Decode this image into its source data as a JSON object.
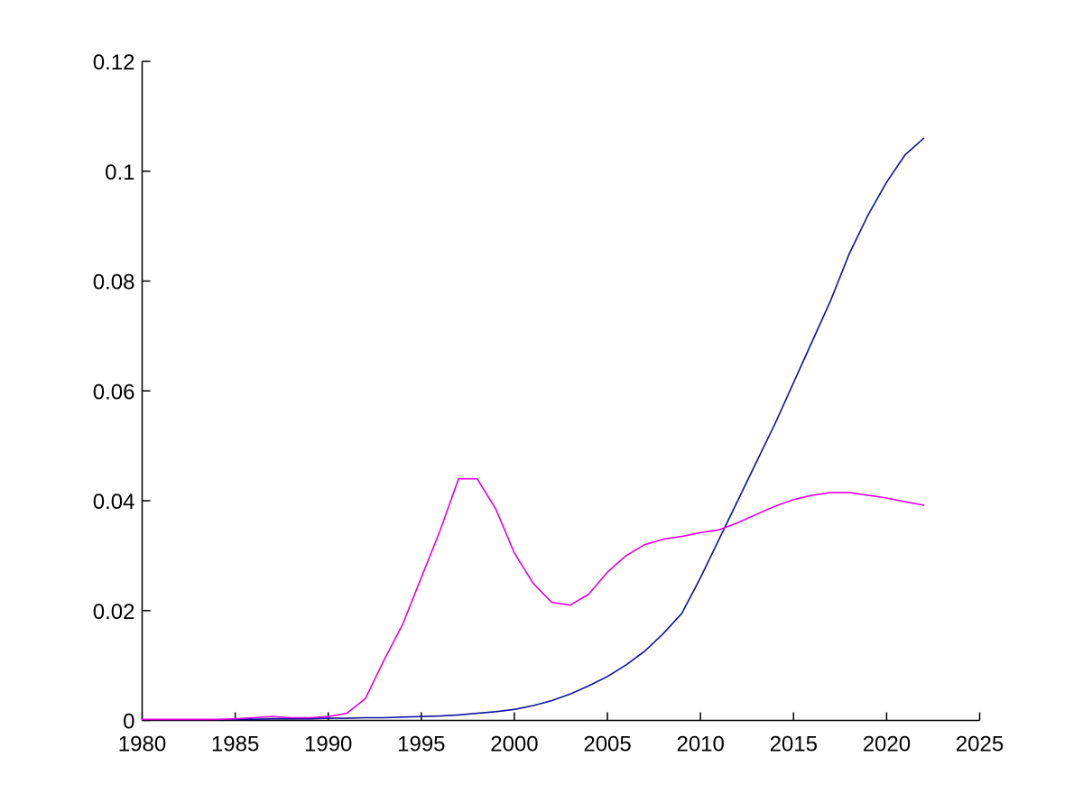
{
  "figure": {
    "background": "#ffffff"
  },
  "chart_data": {
    "type": "line",
    "x": [
      1980,
      1981,
      1982,
      1983,
      1984,
      1985,
      1986,
      1987,
      1988,
      1989,
      1990,
      1991,
      1992,
      1993,
      1994,
      1995,
      1996,
      1997,
      1998,
      1999,
      2000,
      2001,
      2002,
      2003,
      2004,
      2005,
      2006,
      2007,
      2008,
      2009,
      2010,
      2011,
      2012,
      2013,
      2014,
      2015,
      2016,
      2017,
      2018,
      2019,
      2020,
      2021,
      2022
    ],
    "series": [
      {
        "name": "blue-sigmoid-series",
        "color": "#10109b",
        "values": [
          0.0002,
          0.0002,
          0.0002,
          0.0002,
          0.0002,
          0.0002,
          0.0002,
          0.0003,
          0.0003,
          0.0003,
          0.0004,
          0.0004,
          0.0005,
          0.0005,
          0.0006,
          0.0007,
          0.0008,
          0.001,
          0.0013,
          0.0016,
          0.002,
          0.0027,
          0.0036,
          0.0048,
          0.0063,
          0.008,
          0.0101,
          0.0126,
          0.0158,
          0.0195,
          0.026,
          0.033,
          0.04,
          0.047,
          0.054,
          0.0615,
          0.069,
          0.0765,
          0.085,
          0.092,
          0.098,
          0.103,
          0.106
        ]
      },
      {
        "name": "magenta-double-peak-series",
        "color": "#e000e0",
        "values": [
          0.0002,
          0.0002,
          0.0002,
          0.0002,
          0.0002,
          0.0003,
          0.0005,
          0.0007,
          0.0005,
          0.0005,
          0.0007,
          0.0013,
          0.004,
          0.011,
          0.0175,
          0.026,
          0.0345,
          0.044,
          0.044,
          0.0385,
          0.0305,
          0.025,
          0.0215,
          0.021,
          0.023,
          0.027,
          0.03,
          0.032,
          0.033,
          0.0335,
          0.0342,
          0.0347,
          0.036,
          0.0375,
          0.039,
          0.0402,
          0.041,
          0.0415,
          0.0415,
          0.041,
          0.0405,
          0.0398,
          0.0392
        ]
      }
    ],
    "xlim": [
      1980,
      2025
    ],
    "ylim": [
      0,
      0.12
    ],
    "x_ticks": [
      1980,
      1985,
      1990,
      1995,
      2000,
      2005,
      2010,
      2015,
      2020,
      2025
    ],
    "x_tick_labels": [
      "1980",
      "1985",
      "1990",
      "1995",
      "2000",
      "2005",
      "2010",
      "2015",
      "2020",
      "2025"
    ],
    "y_ticks": [
      0,
      0.02,
      0.04,
      0.06,
      0.08,
      0.1,
      0.12
    ],
    "y_tick_labels": [
      "0",
      "0.02",
      "0.04",
      "0.06",
      "0.08",
      "0.1",
      "0.12"
    ],
    "grid": false,
    "legend": "none",
    "axis_color": "#000000"
  }
}
